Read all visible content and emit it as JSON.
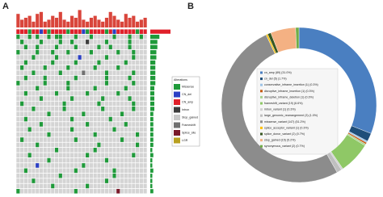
{
  "chart_data": [
    {
      "type": "oncoprint",
      "panel_label": "A",
      "legend_title": "Alterations",
      "alterations": [
        {
          "name": "Missense",
          "color": "#1f9a3a"
        },
        {
          "name": "CN_del",
          "color": "#2b3fc4"
        },
        {
          "name": "CN_amp",
          "color": "#e0202a"
        },
        {
          "name": "Intron",
          "color": "#3c3c3c"
        },
        {
          "name": "Stop_gained",
          "color": "#c8c8c8"
        },
        {
          "name": "Frameshift",
          "color": "#707070"
        },
        {
          "name": "Splice_site",
          "color": "#7a1a2a"
        },
        {
          "name": "LGR",
          "color": "#b8a020"
        }
      ],
      "rows": [
        "2220221202222022210222202122222022",
        "0..0.0..0.00...0...0.....0...0..0.",
        ".0....0....0..0...3....0.....0....",
        "..0..0....0....0.....0..0....0....",
        "0....0...0...0.....0......0...0...",
        "....0.....0.....1......0......0...",
        "..0......0.....0.....0......0.....",
        ".0.....0.....0......0.....0.......",
        "....0......0.....5.....0......0...",
        "..0....0.......0.......0.....0....",
        "0......0.....0.........0......0...",
        ".....0.......0......0.......0.....",
        "..0.......0.......0.......0.......",
        "......0.......0.......0......0....",
        ".0..........0........0........0...",
        "....0.......0.........0.......0...",
        "........0........0.........0......",
        "..0...........0.........0.........",
        "......0...........0.........0.....",
        "...0..........0..........0........",
        "........0...........0..........0..",
        ".0.............0...........0......",
        ".....0...............0.........0..",
        "..........0.........0.............",
        "...0..............0...........0...",
        "........0..............0..........",
        ".....1...........0................",
        "..0............0.........0........",
        "...........0.............0........",
        "....0..................0..........",
        ".........0........0...............",
        "0..............0..........6......."
      ],
      "top_bars": {
        "color": "#d9453b",
        "ylim": [
          0,
          10
        ],
        "values": [
          7,
          4,
          5,
          6,
          3,
          7,
          8,
          3,
          4,
          6,
          5,
          8,
          4,
          3,
          6,
          5,
          9,
          4,
          3,
          5,
          6,
          4,
          3,
          5,
          8,
          6,
          4,
          3,
          7,
          5,
          6,
          3,
          4,
          5
        ]
      },
      "side_bars": {
        "color": "#1f9a3a",
        "xlim": [
          0,
          20
        ],
        "values": [
          20,
          9,
          7,
          7,
          6,
          6,
          5,
          5,
          5,
          5,
          5,
          4,
          4,
          4,
          4,
          4,
          3,
          3,
          3,
          3,
          3,
          3,
          3,
          2,
          3,
          2,
          2,
          3,
          2,
          2,
          2,
          3
        ]
      }
    },
    {
      "type": "donut",
      "panel_label": "B",
      "series": [
        {
          "name": "cn_amp (89) (31.0%)",
          "color": "#4a7fc1",
          "value": 89
        },
        {
          "name": "cn_del (5) (1.7%)",
          "color": "#1f4e79",
          "value": 5
        },
        {
          "name": "conservative_inframe_insertion (1) (0.3%)",
          "color": "#9dc3e6",
          "value": 1
        },
        {
          "name": "disruptive_inframe_insertion (1) (0.3%)",
          "color": "#c55a11",
          "value": 1
        },
        {
          "name": "disruptive_inframe_deletion (1) (0.3%)",
          "color": "#a9d18e",
          "value": 1
        },
        {
          "name": "frameshift_variant (19) (6.6%)",
          "color": "#8fc866",
          "value": 19
        },
        {
          "name": "intron_variant (1) (0.3%)",
          "color": "#d0d0d0",
          "value": 1
        },
        {
          "name": "large_genomic_rearrangement (3) (1.0%)",
          "color": "#bfbfbf",
          "value": 3
        },
        {
          "name": "missense_variant (147) (51.2%)",
          "color": "#8c8c8c",
          "value": 147
        },
        {
          "name": "splice_acceptor_variant (1) (0.3%)",
          "color": "#ffc000",
          "value": 1
        },
        {
          "name": "splice_donor_variant (2) (0.7%)",
          "color": "#385723",
          "value": 2
        },
        {
          "name": "stop_gained (15) (5.2%)",
          "color": "#f4b183",
          "value": 15
        },
        {
          "name": "synonymous_variant (2) (0.7%)",
          "color": "#70ad47",
          "value": 2
        }
      ]
    }
  ]
}
